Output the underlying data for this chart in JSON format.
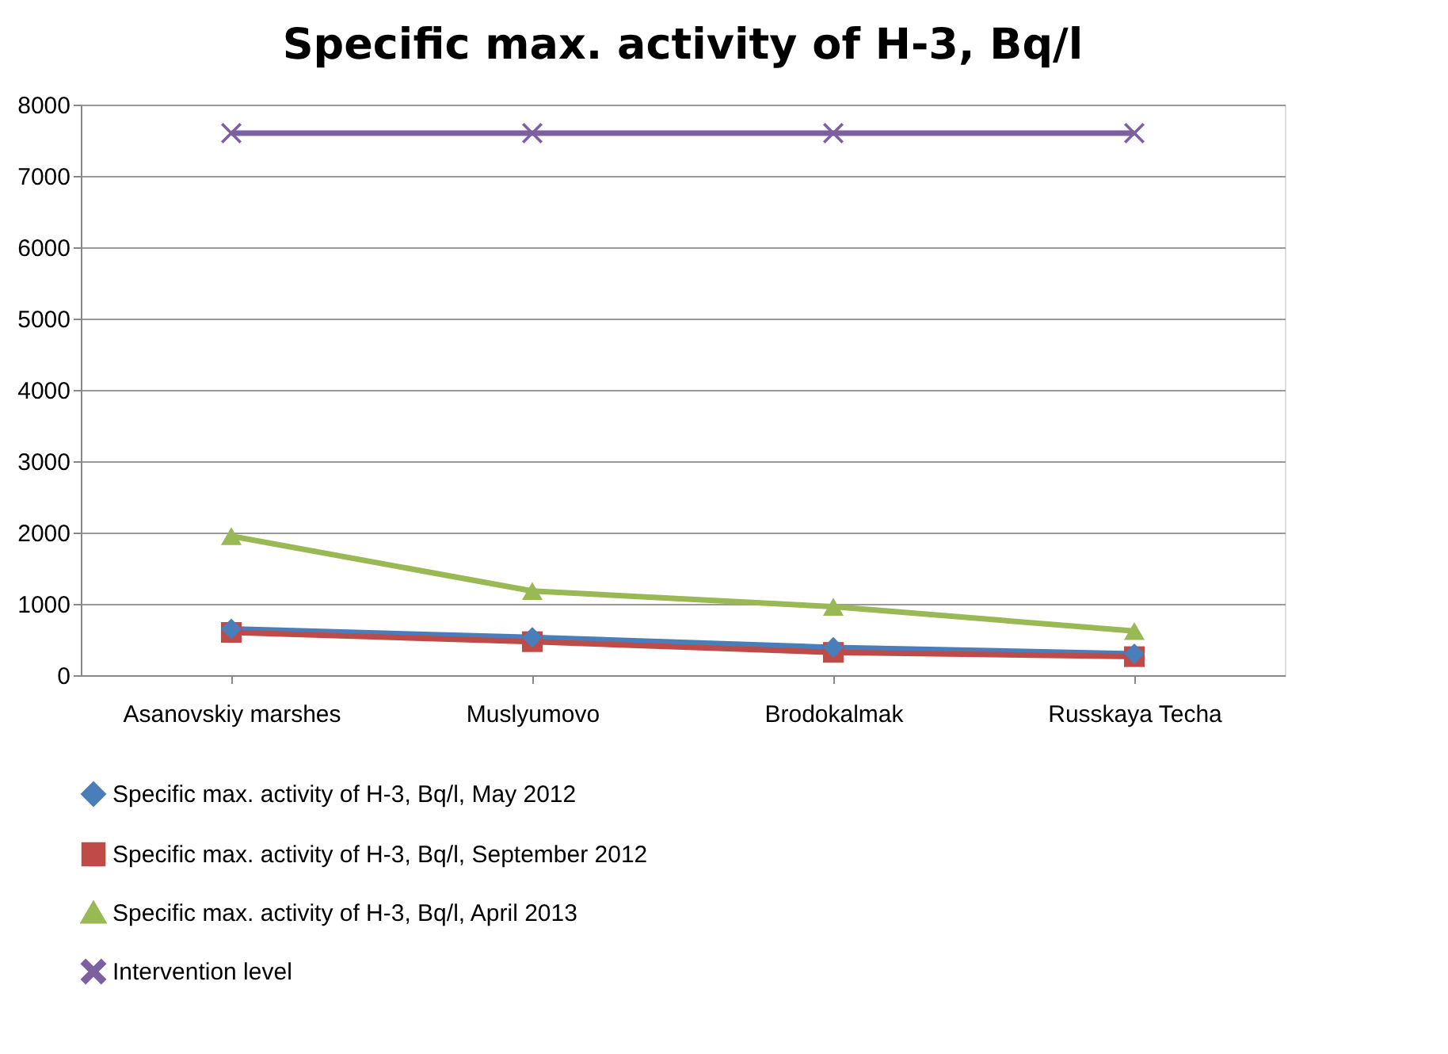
{
  "chart_data": {
    "type": "line",
    "title": "Specific max. activity of H-3, Bq/l",
    "categories": [
      "Asanovskiy marshes",
      "Muslyumovo",
      "Brodokalmak",
      "Russkaya Techa"
    ],
    "series": [
      {
        "name": "Specific max. activity of H-3, Bq/l,  May 2012",
        "color": "#4a7ebb",
        "marker": "diamond",
        "values": [
          650,
          530,
          390,
          300
        ]
      },
      {
        "name": "Specific max. activity of H-3, Bq/l,  September 2012",
        "color": "#be4b48",
        "marker": "square",
        "values": [
          600,
          470,
          320,
          260
        ]
      },
      {
        "name": "Specific max. activity of H-3, Bq/l, April 2013",
        "color": "#98b954",
        "marker": "triangle",
        "values": [
          1950,
          1180,
          960,
          620
        ]
      },
      {
        "name": "Intervention level",
        "color": "#7d60a0",
        "marker": "cross",
        "values": [
          7600,
          7600,
          7600,
          7600
        ]
      }
    ],
    "ylim": [
      0,
      8000
    ],
    "yticks": [
      0,
      1000,
      2000,
      3000,
      4000,
      5000,
      6000,
      7000,
      8000
    ],
    "grid": "y",
    "legend": "bottom",
    "line_style": "solid"
  }
}
